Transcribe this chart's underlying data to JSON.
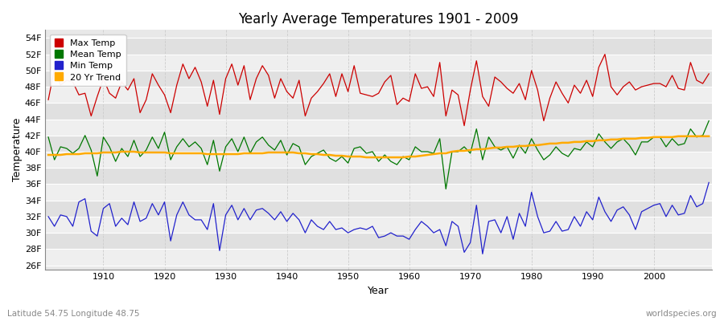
{
  "title": "Yearly Average Temperatures 1901 - 2009",
  "xlabel": "Year",
  "ylabel": "Temperature",
  "subtitle_lat_lon": "Latitude 54.75 Longitude 48.75",
  "watermark": "worldspecies.org",
  "year_start": 1901,
  "year_end": 2009,
  "yticks": [
    "26F",
    "28F",
    "30F",
    "32F",
    "34F",
    "36F",
    "38F",
    "40F",
    "42F",
    "44F",
    "46F",
    "48F",
    "50F",
    "52F",
    "54F"
  ],
  "ytick_values": [
    26,
    28,
    30,
    32,
    34,
    36,
    38,
    40,
    42,
    44,
    46,
    48,
    50,
    52,
    54
  ],
  "ylim": [
    25.5,
    55
  ],
  "fig_bg_color": "#ffffff",
  "plot_bg_color": "#e8e8e8",
  "band_light": "#efefef",
  "band_dark": "#e0e0e0",
  "grid_color": "#ffffff",
  "vgrid_color": "#cccccc",
  "line_colors": {
    "max": "#cc0000",
    "mean": "#007700",
    "min": "#2222cc",
    "trend": "#ffaa00"
  },
  "legend_labels": [
    "Max Temp",
    "Mean Temp",
    "Min Temp",
    "20 Yr Trend"
  ],
  "max_temp": [
    46.4,
    50.2,
    48.2,
    48.8,
    48.6,
    47.0,
    47.2,
    44.4,
    46.8,
    49.0,
    47.2,
    46.6,
    48.6,
    47.6,
    49.0,
    44.8,
    46.4,
    49.6,
    48.2,
    47.0,
    44.8,
    48.2,
    50.8,
    49.0,
    50.4,
    48.6,
    45.6,
    48.8,
    44.6,
    49.0,
    50.8,
    48.2,
    50.6,
    46.4,
    49.0,
    50.6,
    49.4,
    46.6,
    49.0,
    47.4,
    46.6,
    48.8,
    44.4,
    46.6,
    47.4,
    48.4,
    49.6,
    46.8,
    49.6,
    47.4,
    50.6,
    47.2,
    47.0,
    46.8,
    47.2,
    48.6,
    49.4,
    45.8,
    46.6,
    46.2,
    49.6,
    47.8,
    48.0,
    46.8,
    51.0,
    44.4,
    47.6,
    47.0,
    43.2,
    47.6,
    51.2,
    46.8,
    45.6,
    49.2,
    48.6,
    47.8,
    47.2,
    48.4,
    46.4,
    50.0,
    47.6,
    43.8,
    46.6,
    48.6,
    47.2,
    46.0,
    48.2,
    47.2,
    48.8,
    46.8,
    50.4,
    52.0,
    48.0,
    47.0,
    48.0,
    48.6,
    47.6,
    48.0,
    48.2,
    48.4,
    48.4,
    48.0,
    49.4,
    47.8,
    47.6,
    51.0,
    48.8,
    48.4,
    49.6
  ],
  "mean_temp": [
    41.8,
    39.0,
    40.6,
    40.4,
    39.8,
    40.4,
    42.0,
    40.2,
    37.0,
    41.8,
    40.6,
    38.8,
    40.4,
    39.4,
    41.4,
    39.4,
    40.2,
    41.8,
    40.4,
    42.4,
    39.0,
    40.6,
    41.6,
    40.6,
    41.2,
    40.4,
    38.4,
    41.4,
    37.6,
    40.6,
    41.6,
    40.0,
    41.8,
    39.8,
    41.2,
    41.8,
    40.8,
    40.2,
    41.4,
    39.6,
    41.0,
    40.6,
    38.4,
    39.4,
    39.8,
    40.2,
    39.2,
    38.8,
    39.4,
    38.6,
    40.4,
    40.6,
    39.8,
    40.0,
    38.8,
    39.6,
    38.8,
    38.4,
    39.4,
    39.0,
    40.6,
    40.0,
    40.0,
    39.8,
    41.6,
    35.4,
    40.0,
    40.0,
    40.6,
    39.8,
    42.8,
    39.0,
    41.8,
    40.6,
    40.2,
    40.6,
    39.2,
    40.8,
    39.8,
    41.6,
    40.2,
    39.0,
    39.6,
    40.6,
    39.8,
    39.4,
    40.4,
    40.2,
    41.2,
    40.6,
    42.2,
    41.2,
    40.4,
    41.2,
    41.6,
    40.8,
    39.6,
    41.2,
    41.2,
    41.8,
    41.8,
    40.6,
    41.6,
    40.8,
    41.0,
    42.8,
    41.8,
    42.0,
    43.8
  ],
  "min_temp": [
    32.0,
    30.8,
    32.2,
    32.0,
    30.8,
    33.8,
    34.2,
    30.2,
    29.6,
    33.0,
    33.6,
    30.8,
    31.8,
    31.0,
    33.8,
    31.4,
    31.8,
    33.6,
    32.2,
    33.8,
    29.0,
    32.2,
    33.8,
    32.2,
    31.6,
    31.6,
    30.4,
    33.6,
    27.8,
    32.2,
    33.4,
    31.6,
    33.0,
    31.6,
    32.8,
    33.0,
    32.4,
    31.6,
    32.6,
    31.4,
    32.4,
    31.6,
    30.0,
    31.6,
    30.8,
    30.4,
    31.4,
    30.4,
    30.6,
    30.0,
    30.4,
    30.6,
    30.4,
    30.8,
    29.4,
    29.6,
    30.0,
    29.6,
    29.6,
    29.2,
    30.4,
    31.4,
    30.8,
    30.0,
    30.4,
    28.4,
    31.4,
    30.8,
    27.6,
    28.8,
    33.4,
    27.4,
    31.4,
    31.6,
    30.0,
    32.0,
    29.2,
    32.4,
    30.8,
    35.0,
    32.0,
    30.0,
    30.2,
    31.4,
    30.2,
    30.4,
    32.0,
    30.8,
    32.6,
    31.6,
    34.4,
    32.6,
    31.4,
    32.8,
    33.2,
    32.2,
    30.4,
    32.6,
    33.0,
    33.4,
    33.6,
    32.0,
    33.4,
    32.2,
    32.4,
    34.6,
    33.2,
    33.6,
    36.2
  ],
  "trend": [
    39.6,
    39.6,
    39.6,
    39.7,
    39.7,
    39.7,
    39.8,
    39.8,
    39.8,
    39.9,
    39.9,
    39.9,
    40.0,
    40.0,
    40.0,
    39.9,
    39.9,
    39.9,
    39.9,
    39.9,
    39.8,
    39.8,
    39.8,
    39.8,
    39.8,
    39.8,
    39.7,
    39.7,
    39.7,
    39.7,
    39.7,
    39.7,
    39.8,
    39.8,
    39.8,
    39.8,
    39.9,
    39.9,
    39.9,
    39.9,
    39.9,
    39.8,
    39.8,
    39.7,
    39.7,
    39.6,
    39.6,
    39.5,
    39.5,
    39.4,
    39.4,
    39.4,
    39.3,
    39.3,
    39.3,
    39.3,
    39.3,
    39.3,
    39.3,
    39.4,
    39.4,
    39.5,
    39.6,
    39.7,
    39.8,
    39.8,
    40.0,
    40.1,
    40.1,
    40.2,
    40.3,
    40.3,
    40.4,
    40.5,
    40.5,
    40.6,
    40.6,
    40.7,
    40.7,
    40.8,
    40.8,
    40.9,
    41.0,
    41.0,
    41.1,
    41.1,
    41.2,
    41.2,
    41.3,
    41.3,
    41.4,
    41.4,
    41.5,
    41.5,
    41.6,
    41.6,
    41.6,
    41.7,
    41.7,
    41.8,
    41.8,
    41.8,
    41.8,
    41.9,
    41.9,
    41.9,
    41.9,
    41.9,
    41.9
  ]
}
